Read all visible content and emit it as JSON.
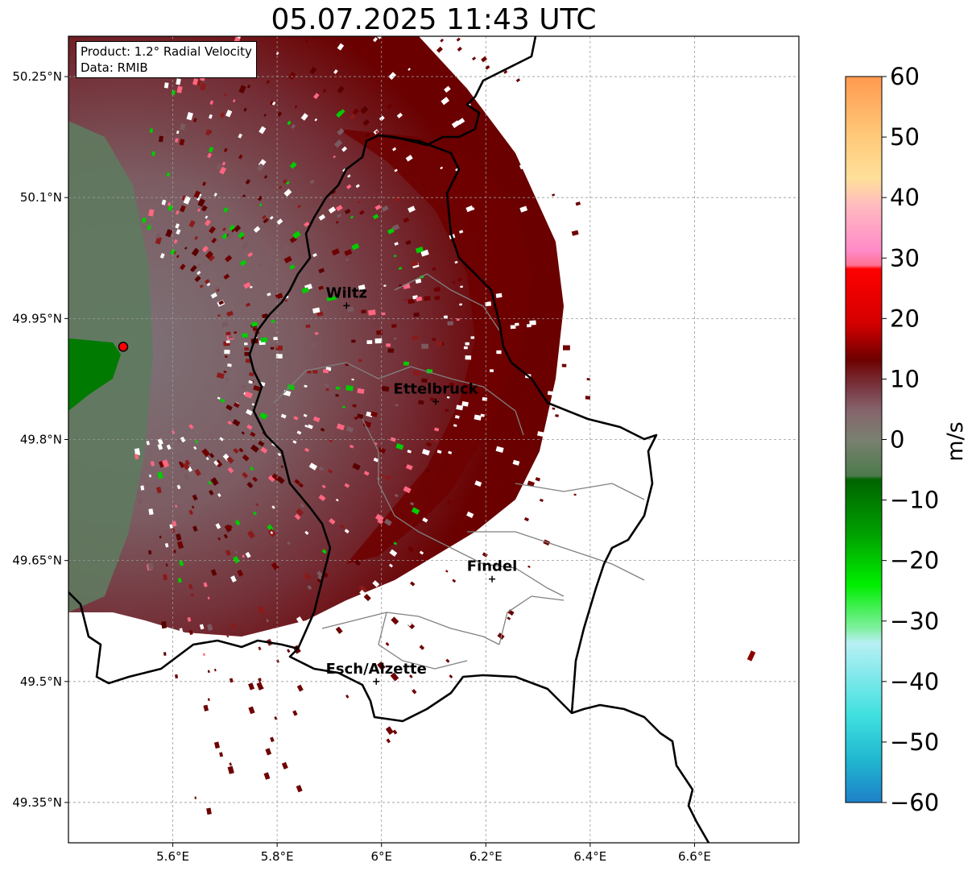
{
  "title": "05.07.2025 11:43 UTC",
  "info": {
    "product": "Product: 1.2° Radial Velocity",
    "data": "Data: RMIB"
  },
  "map": {
    "lon_range": [
      5.4,
      6.8
    ],
    "lat_range": [
      49.3,
      50.3
    ],
    "lon_ticks": [
      "5.6°E",
      "5.8°E",
      "6°E",
      "6.2°E",
      "6.4°E",
      "6.6°E"
    ],
    "lat_ticks": [
      "50.25°N",
      "50.1°N",
      "49.95°N",
      "49.8°N",
      "49.65°N",
      "49.5°N",
      "49.35°N"
    ],
    "grid": true,
    "radar_site": {
      "lon": 5.505,
      "lat": 49.915
    },
    "cities": [
      {
        "name": "Wiltz",
        "lon": 5.933,
        "lat": 49.966
      },
      {
        "name": "Ettelbruck",
        "lon": 6.104,
        "lat": 49.847
      },
      {
        "name": "Findel",
        "lon": 6.212,
        "lat": 49.627
      },
      {
        "name": "Esch/Alzette",
        "lon": 5.99,
        "lat": 49.5
      }
    ]
  },
  "colorbar": {
    "label": "m/s",
    "min": -60,
    "max": 60,
    "ticks": [
      "60",
      "50",
      "40",
      "30",
      "20",
      "10",
      "0",
      "−10",
      "−20",
      "−30",
      "−40",
      "−50",
      "−60"
    ]
  },
  "colors": {
    "inbound_strong": "#00cc00",
    "inbound": "#006400",
    "near_zero": "#7a6e70",
    "outbound": "#6e0000",
    "outbound_strong": "#ff0000",
    "folded": "#ff6680"
  }
}
